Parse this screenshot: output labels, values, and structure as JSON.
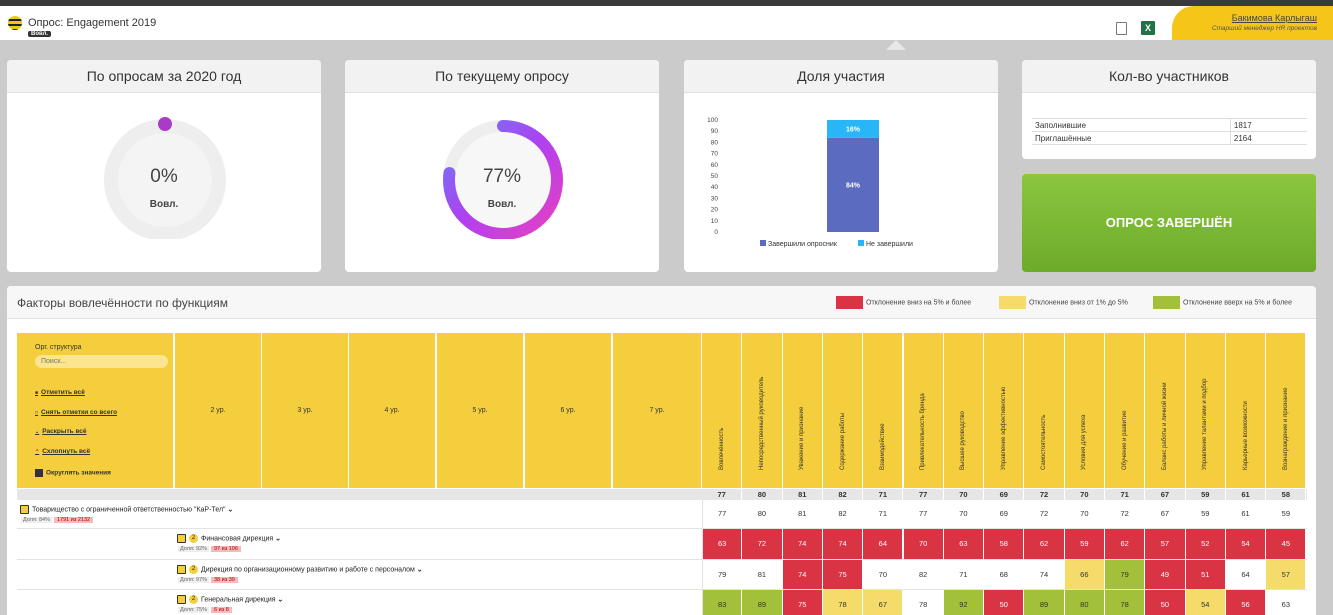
{
  "header": {
    "title": "Опрос: Engagement 2019",
    "tag": "Вовл.",
    "user_name": "Бакимова Карлыгаш",
    "user_role": "Старший менеджер HR проектов",
    "excel_icon_text": "X"
  },
  "cards": {
    "year": {
      "title": "По опросам за 2020 год",
      "value": "0%",
      "label": "Вовл.",
      "percent": 0
    },
    "current": {
      "title": "По текущему опросу",
      "value": "77%",
      "label": "Вовл.",
      "percent": 77
    },
    "share": {
      "title": "Доля участия"
    },
    "count": {
      "title": "Кол-во участников",
      "rows": [
        {
          "label": "Заполнившие",
          "value": "1817"
        },
        {
          "label": "Приглашённые",
          "value": "2164"
        }
      ]
    },
    "done_label": "ОПРОС ЗАВЕРШЁН"
  },
  "chart_data": {
    "type": "bar",
    "stacked": true,
    "ylim": [
      0,
      100
    ],
    "yticks": [
      "0",
      "10",
      "20",
      "30",
      "40",
      "50",
      "60",
      "70",
      "80",
      "90",
      "100"
    ],
    "series": [
      {
        "name": "Завершили опросник",
        "values": [
          84
        ],
        "label": "84%",
        "color": "#5b6bc0"
      },
      {
        "name": "Не завершили",
        "values": [
          16
        ],
        "label": "16%",
        "color": "#29b6f6"
      }
    ],
    "legend": "bottom"
  },
  "main": {
    "title": "Факторы вовлечённости по функциям",
    "legend": [
      {
        "label": "Отклонение вниз на 5% и более",
        "color": "#d93344"
      },
      {
        "label": "Отклонение вниз от 1% до 5%",
        "color": "#f5dc6a"
      },
      {
        "label": "Отклонение вверх на 5% и более",
        "color": "#a3c03a"
      }
    ],
    "org_label": "Орг. структура",
    "search_placeholder": "Поиск...",
    "links": [
      "Отметить всё",
      "Снять отметки со всего",
      "Раскрыть всё",
      "Схлопнуть всё"
    ],
    "round_label": "Округлять значения",
    "levels": [
      "2 ур.",
      "3 ур.",
      "4 ур.",
      "5 ур.",
      "6 ур.",
      "7 ур."
    ],
    "factors": [
      "Вовлечённость",
      "Непосредственный руководитель",
      "Уважение и признание",
      "Содержание работы",
      "Взаимодействие",
      "Привлекательность бренда",
      "Высшее руководство",
      "Управление эффективностью",
      "Самостоятельность",
      "Условия для успеха",
      "Обучение и развитие",
      "Баланс работы и личной жизни",
      "Управление талантами и подбор",
      "Карьерные возможности",
      "Вознаграждение и признание"
    ],
    "averages": [
      "77",
      "80",
      "81",
      "82",
      "71",
      "77",
      "70",
      "69",
      "72",
      "70",
      "71",
      "67",
      "59",
      "61",
      "58"
    ],
    "rows": [
      {
        "name": "Товарищество с ограниченной ответственностью \"КаР-Тел\"",
        "share": "Доля: 84%",
        "count": "1791 из 2132",
        "level": "",
        "values": [
          "77",
          "80",
          "81",
          "82",
          "71",
          "77",
          "70",
          "69",
          "72",
          "70",
          "72",
          "67",
          "59",
          "61",
          "59"
        ],
        "colors": [
          "n",
          "n",
          "n",
          "n",
          "n",
          "n",
          "n",
          "n",
          "n",
          "n",
          "n",
          "n",
          "n",
          "n",
          "n"
        ]
      },
      {
        "name": "Финансовая дирекция",
        "share": "Доля: 92%",
        "count": "97 из 106",
        "level": "2",
        "values": [
          "63",
          "72",
          "74",
          "74",
          "64",
          "70",
          "63",
          "58",
          "62",
          "59",
          "62",
          "57",
          "52",
          "54",
          "45"
        ],
        "colors": [
          "r",
          "r",
          "r",
          "r",
          "r",
          "r",
          "r",
          "r",
          "r",
          "r",
          "r",
          "r",
          "r",
          "r",
          "r"
        ]
      },
      {
        "name": "Дирекция по организационному развитию и работе с персоналом",
        "share": "Доля: 97%",
        "count": "38 из 39",
        "level": "2",
        "values": [
          "79",
          "81",
          "74",
          "75",
          "70",
          "82",
          "71",
          "68",
          "74",
          "66",
          "79",
          "49",
          "51",
          "64",
          "57"
        ],
        "colors": [
          "n",
          "n",
          "r",
          "r",
          "n",
          "n",
          "n",
          "n",
          "n",
          "y",
          "g",
          "r",
          "r",
          "n",
          "y"
        ]
      },
      {
        "name": "Генеральная дирекция",
        "share": "Доля: 75%",
        "count": "6 из 8",
        "level": "2",
        "values": [
          "83",
          "89",
          "75",
          "78",
          "67",
          "78",
          "92",
          "50",
          "89",
          "80",
          "78",
          "50",
          "54",
          "56",
          "63"
        ],
        "colors": [
          "g",
          "g",
          "r",
          "y",
          "y",
          "n",
          "g",
          "r",
          "g",
          "g",
          "g",
          "r",
          "y",
          "r",
          "n"
        ]
      }
    ]
  }
}
